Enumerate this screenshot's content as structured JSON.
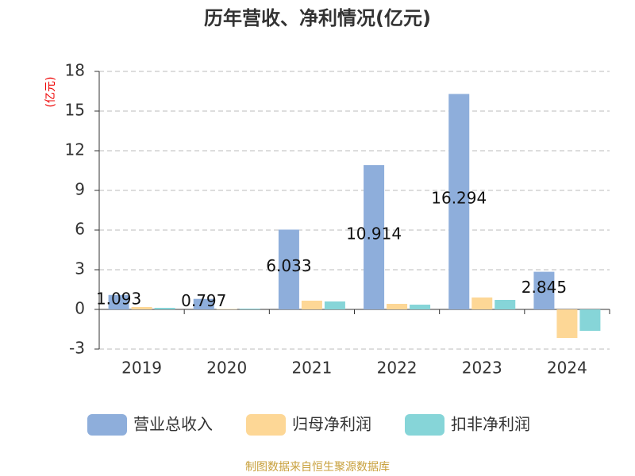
{
  "chart_data": {
    "type": "bar",
    "title": "历年营收、净利情况(亿元)",
    "y_label": "(亿元)",
    "categories": [
      "2019",
      "2020",
      "2021",
      "2022",
      "2023",
      "2024"
    ],
    "series": [
      {
        "name": "营业总收入",
        "color": "#8eaedb",
        "values": [
          1.093,
          0.797,
          6.033,
          10.914,
          16.294,
          2.845
        ],
        "labels": true
      },
      {
        "name": "归母净利润",
        "color": "#fdd796",
        "values": [
          0.18,
          0.03,
          0.66,
          0.42,
          0.9,
          -2.16
        ],
        "labels": false
      },
      {
        "name": "扣非净利润",
        "color": "#86d5d8",
        "values": [
          0.12,
          0.06,
          0.6,
          0.36,
          0.72,
          -1.62
        ],
        "labels": false
      }
    ],
    "ylim": [
      -3,
      18
    ],
    "yticks": [
      -3,
      0,
      3,
      6,
      9,
      12,
      15,
      18
    ],
    "grid": true,
    "source": "制图数据来自恒生聚源数据库"
  }
}
